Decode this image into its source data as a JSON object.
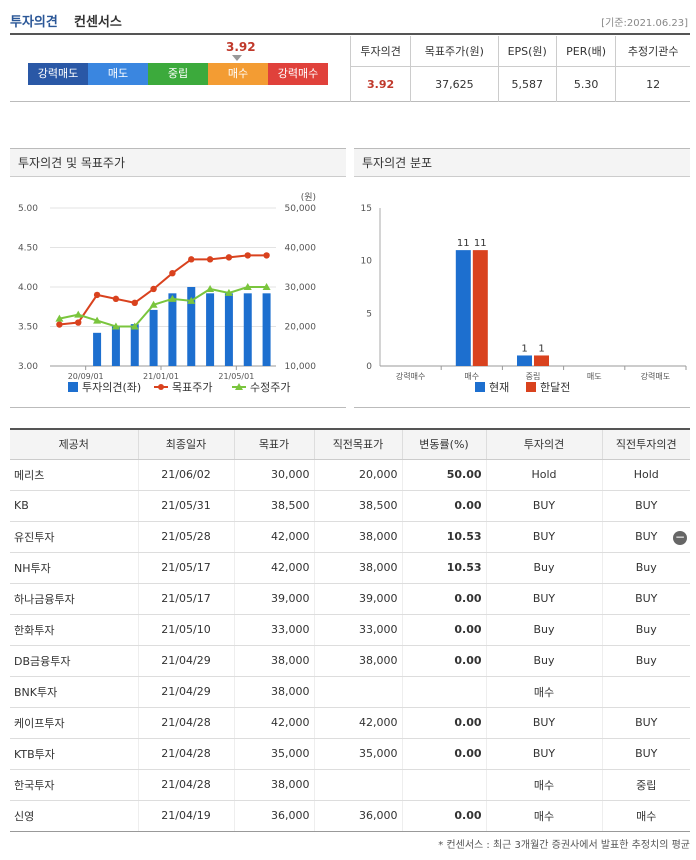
{
  "header": {
    "title": "투자의견",
    "subtitle": "컨센서스",
    "date": "[기준:2021.06.23]"
  },
  "scorebar": {
    "value": "3.92",
    "segments": [
      {
        "label": "강력매도",
        "color": "#2a58a6"
      },
      {
        "label": "매도",
        "color": "#3a86e0"
      },
      {
        "label": "중립",
        "color": "#3caa3c"
      },
      {
        "label": "매수",
        "color": "#f39c33"
      },
      {
        "label": "강력매수",
        "color": "#e0413b"
      }
    ]
  },
  "consensus": {
    "headers": [
      "투자의견",
      "목표주가(원)",
      "EPS(원)",
      "PER(배)",
      "추정기관수"
    ],
    "values": [
      "3.92",
      "37,625",
      "5,587",
      "5.30",
      "12"
    ]
  },
  "chart1_title": "투자의견 및 목표주가",
  "chart2_title": "투자의견 분포",
  "chart_data": [
    {
      "type": "line",
      "title": "투자의견 및 목표주가",
      "unit": "(원)",
      "y_left": {
        "ticks": [
          "5.00",
          "4.50",
          "4.00",
          "3.50",
          "3.00"
        ],
        "range": [
          3.0,
          5.0
        ]
      },
      "y_right": {
        "ticks": [
          "50,000",
          "40,000",
          "30,000",
          "20,000",
          "10,000"
        ],
        "range": [
          10000,
          50000
        ]
      },
      "x_ticks": [
        "20/09/01",
        "21/01/01",
        "21/05/01"
      ],
      "series": [
        {
          "name": "투자의견(좌)",
          "color": "#1d6fcf",
          "kind": "bar",
          "values": [
            null,
            null,
            3.42,
            3.5,
            3.53,
            3.71,
            3.92,
            4.0,
            3.92,
            3.92,
            3.92,
            3.92
          ]
        },
        {
          "name": "목표주가",
          "color": "#d9421e",
          "kind": "line",
          "values": [
            20500,
            21000,
            28000,
            27000,
            26000,
            29500,
            33500,
            37000,
            37000,
            37500,
            38000,
            38000
          ]
        },
        {
          "name": "수정주가",
          "color": "#7ac53d",
          "kind": "line",
          "values": [
            22000,
            23000,
            21500,
            20000,
            20000,
            25500,
            27000,
            26500,
            29500,
            28500,
            30000,
            30000
          ]
        }
      ]
    },
    {
      "type": "bar",
      "title": "투자의견 분포",
      "categories": [
        "강력매수",
        "매수",
        "중립",
        "매도",
        "강력매도"
      ],
      "y_ticks": [
        "15",
        "10",
        "5",
        "0"
      ],
      "ylim": [
        0,
        15
      ],
      "series": [
        {
          "name": "현재",
          "color": "#1d6fcf",
          "values": [
            0,
            11,
            1,
            0,
            0
          ]
        },
        {
          "name": "한달전",
          "color": "#d9421e",
          "values": [
            0,
            11,
            1,
            0,
            0
          ]
        }
      ]
    }
  ],
  "brokers": {
    "headers": [
      "제공처",
      "최종일자",
      "목표가",
      "직전목표가",
      "변동률(%)",
      "투자의견",
      "직전투자의견"
    ],
    "rows": [
      [
        "메리츠",
        "21/06/02",
        "30,000",
        "20,000",
        "50.00",
        "Hold",
        "Hold"
      ],
      [
        "KB",
        "21/05/31",
        "38,500",
        "38,500",
        "0.00",
        "BUY",
        "BUY"
      ],
      [
        "유진투자",
        "21/05/28",
        "42,000",
        "38,000",
        "10.53",
        "BUY",
        "BUY"
      ],
      [
        "NH투자",
        "21/05/17",
        "42,000",
        "38,000",
        "10.53",
        "Buy",
        "Buy"
      ],
      [
        "하나금융투자",
        "21/05/17",
        "39,000",
        "39,000",
        "0.00",
        "BUY",
        "BUY"
      ],
      [
        "한화투자",
        "21/05/10",
        "33,000",
        "33,000",
        "0.00",
        "Buy",
        "Buy"
      ],
      [
        "DB금융투자",
        "21/04/29",
        "38,000",
        "38,000",
        "0.00",
        "Buy",
        "Buy"
      ],
      [
        "BNK투자",
        "21/04/29",
        "38,000",
        "",
        "",
        "매수",
        ""
      ],
      [
        "케이프투자",
        "21/04/28",
        "42,000",
        "42,000",
        "0.00",
        "BUY",
        "BUY"
      ],
      [
        "KTB투자",
        "21/04/28",
        "35,000",
        "35,000",
        "0.00",
        "BUY",
        "BUY"
      ],
      [
        "한국투자",
        "21/04/28",
        "38,000",
        "",
        "",
        "매수",
        "중립"
      ],
      [
        "신영",
        "21/04/19",
        "36,000",
        "36,000",
        "0.00",
        "매수",
        "매수"
      ]
    ]
  },
  "footnote": "* 컨센서스 : 최근 3개월간 증권사에서 발표한 추정치의 평균",
  "icons": {
    "collapse": "minus-circle-icon",
    "collapse_glyph": "−"
  }
}
